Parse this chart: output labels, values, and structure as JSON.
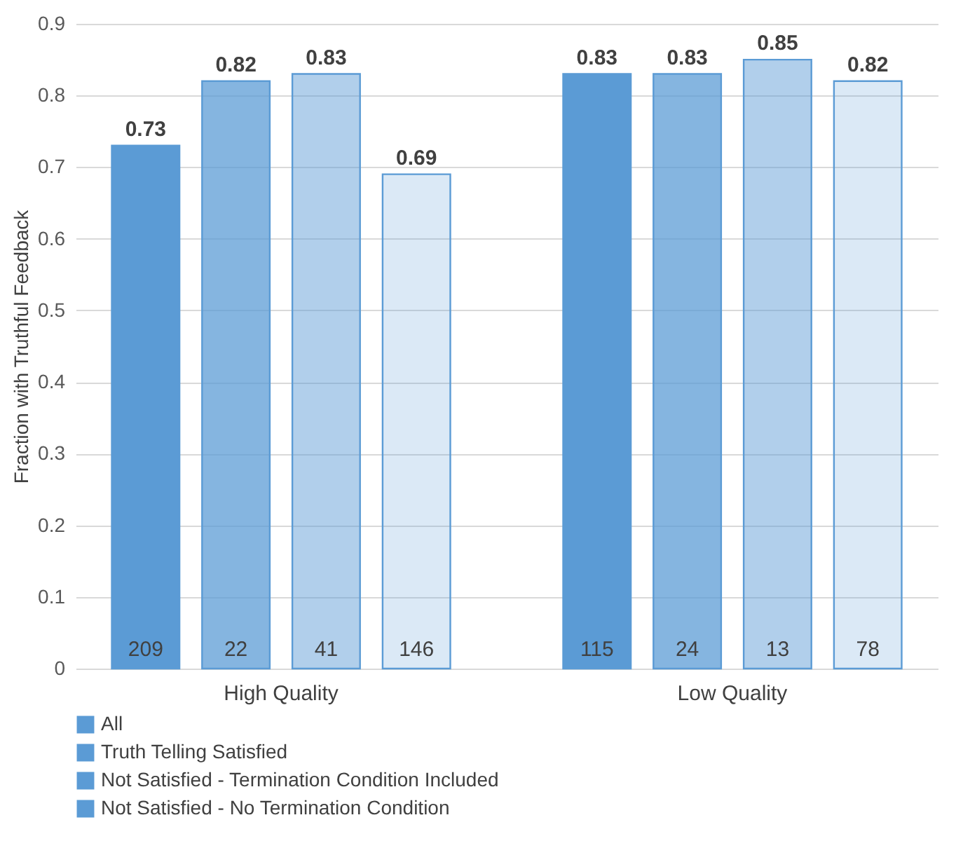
{
  "chart_data": {
    "type": "bar",
    "ylabel": "Fraction with Truthful Feedback",
    "categories": [
      "High Quality",
      "Low Quality"
    ],
    "series": [
      {
        "name": "All",
        "color": "#5b9bd5",
        "values": [
          0.73,
          0.83
        ]
      },
      {
        "name": "Truth Telling Satisfied",
        "color": "#5b9bd5",
        "values": [
          0.82,
          0.83
        ]
      },
      {
        "name": "Not Satisfied - Termination Condition Included",
        "color": "#5b9bd5",
        "values": [
          0.83,
          0.85
        ]
      },
      {
        "name": "Not Satisfied - No Termination Condition",
        "color": "#5b9bd5",
        "values": [
          0.69,
          0.82
        ]
      }
    ],
    "ylim": [
      0,
      0.9
    ],
    "yticks": [
      0,
      0.1,
      0.2,
      0.3,
      0.4,
      0.5,
      0.6,
      0.7,
      0.8,
      0.9
    ],
    "grid": "y",
    "legend": "bottom",
    "data_labels": true,
    "annotations": [
      "209",
      "115",
      "22",
      "24",
      "41",
      "13",
      "146",
      "78"
    ]
  }
}
